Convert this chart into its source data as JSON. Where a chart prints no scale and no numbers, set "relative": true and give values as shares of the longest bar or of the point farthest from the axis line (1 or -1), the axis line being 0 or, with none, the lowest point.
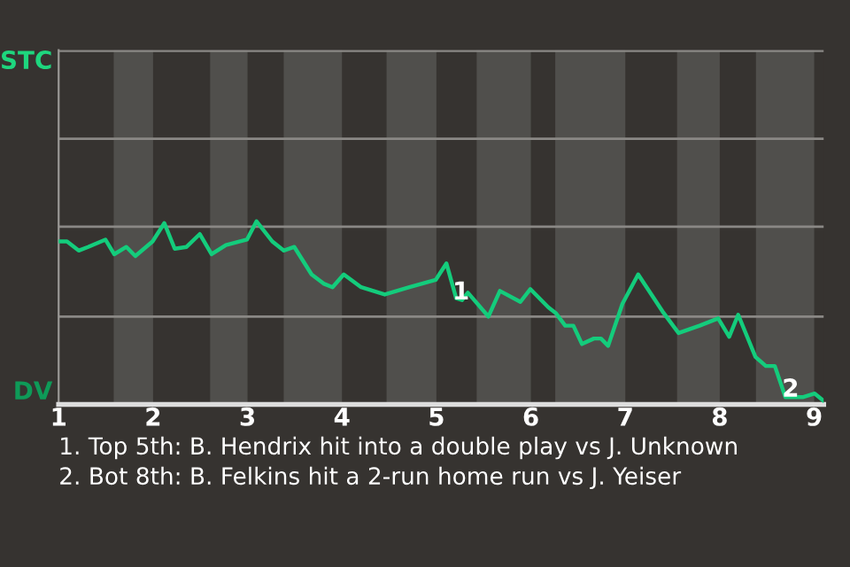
{
  "chart_data": {
    "type": "line",
    "relative": true,
    "x": [
      1.0,
      1.088,
      1.212,
      1.312,
      1.495,
      1.588,
      1.717,
      1.812,
      1.995,
      2.119,
      2.229,
      2.354,
      2.494,
      2.619,
      2.771,
      2.994,
      3.095,
      3.262,
      3.383,
      3.495,
      3.678,
      3.805,
      3.9,
      4.019,
      4.203,
      4.453,
      4.714,
      4.992,
      5.106,
      5.209,
      5.272,
      5.333,
      5.55,
      5.672,
      5.889,
      5.994,
      6.186,
      6.262,
      6.364,
      6.45,
      6.541,
      6.667,
      6.742,
      6.818,
      6.97,
      7.136,
      7.405,
      7.564,
      7.786,
      7.983,
      8.1,
      8.195,
      8.378,
      8.488,
      8.583,
      8.695,
      8.878,
      9.005,
      9.1
    ],
    "series": [
      {
        "color": "#14cc7c",
        "values": [
          0.89,
          0.89,
          0.84,
          0.86,
          0.9,
          0.82,
          0.86,
          0.81,
          0.89,
          0.99,
          0.85,
          0.86,
          0.93,
          0.82,
          0.87,
          0.9,
          1,
          0.89,
          0.84,
          0.86,
          0.71,
          0.66,
          0.64,
          0.71,
          0.64,
          0.6,
          0.64,
          0.68,
          0.77,
          0.58,
          0.57,
          0.61,
          0.48,
          0.62,
          0.56,
          0.63,
          0.53,
          0.5,
          0.43,
          0.43,
          0.33,
          0.36,
          0.36,
          0.32,
          0.55,
          0.71,
          0.5,
          0.39,
          0.43,
          0.47,
          0.37,
          0.49,
          0.26,
          0.21,
          0.21,
          0.04,
          0.04,
          0.06,
          0.02
        ]
      }
    ],
    "xlim": [
      1,
      9.1
    ],
    "xticks": [
      1,
      2,
      3,
      4,
      5,
      6,
      7,
      8,
      9
    ],
    "ref_lines": [
      {
        "axis": "y",
        "value": 0.48,
        "color": "#8a8885"
      },
      {
        "axis": "y",
        "value": 0.97,
        "color": "#8a8885"
      },
      {
        "axis": "y",
        "value": 1.45,
        "color": "#8a8885"
      },
      {
        "axis": "y",
        "value": 1.93,
        "color": "#8a8885"
      }
    ],
    "bands": [
      {
        "axis": "x",
        "from": 1.583,
        "to": 2,
        "color": "#504f4c"
      },
      {
        "axis": "x",
        "from": 2.604,
        "to": 3,
        "color": "#504f4c"
      },
      {
        "axis": "x",
        "from": 3.383,
        "to": 4,
        "color": "#504f4c"
      },
      {
        "axis": "x",
        "from": 4.472,
        "to": 5,
        "color": "#504f4c"
      },
      {
        "axis": "x",
        "from": 5.426,
        "to": 6,
        "color": "#504f4c"
      },
      {
        "axis": "x",
        "from": 6.258,
        "to": 7,
        "color": "#504f4c"
      },
      {
        "axis": "x",
        "from": 7.548,
        "to": 8,
        "color": "#504f4c"
      },
      {
        "axis": "x",
        "from": 8.383,
        "to": 9,
        "color": "#504f4c"
      }
    ],
    "annotations": [
      "STC",
      "DV",
      {
        "text": "1",
        "x": 5.26,
        "y": 0.61
      },
      {
        "text": "2",
        "x": 8.75,
        "y": 0.08
      },
      "1. Top 5th: B. Hendrix hit into a double play vs J. Unknown",
      "2. Bot 8th: B. Felkins hit a 2-run home run vs J. Yeiser"
    ]
  }
}
